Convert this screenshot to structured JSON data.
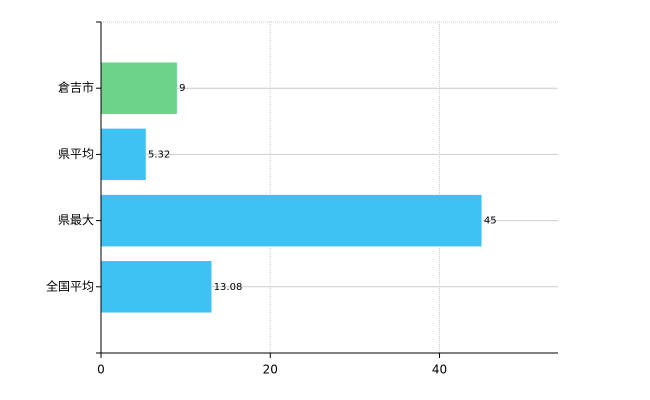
{
  "chart_data": {
    "type": "barh",
    "categories": [
      "倉吉市",
      "県平均",
      "県最大",
      "全国平均"
    ],
    "values": [
      9,
      5.32,
      45,
      13.08
    ],
    "colors": [
      "#6dd38a",
      "#3ec1f3",
      "#3ec1f3",
      "#3ec1f3"
    ],
    "xlim": [
      0,
      54
    ],
    "xticks": [
      0,
      20,
      40
    ],
    "grid": true
  }
}
